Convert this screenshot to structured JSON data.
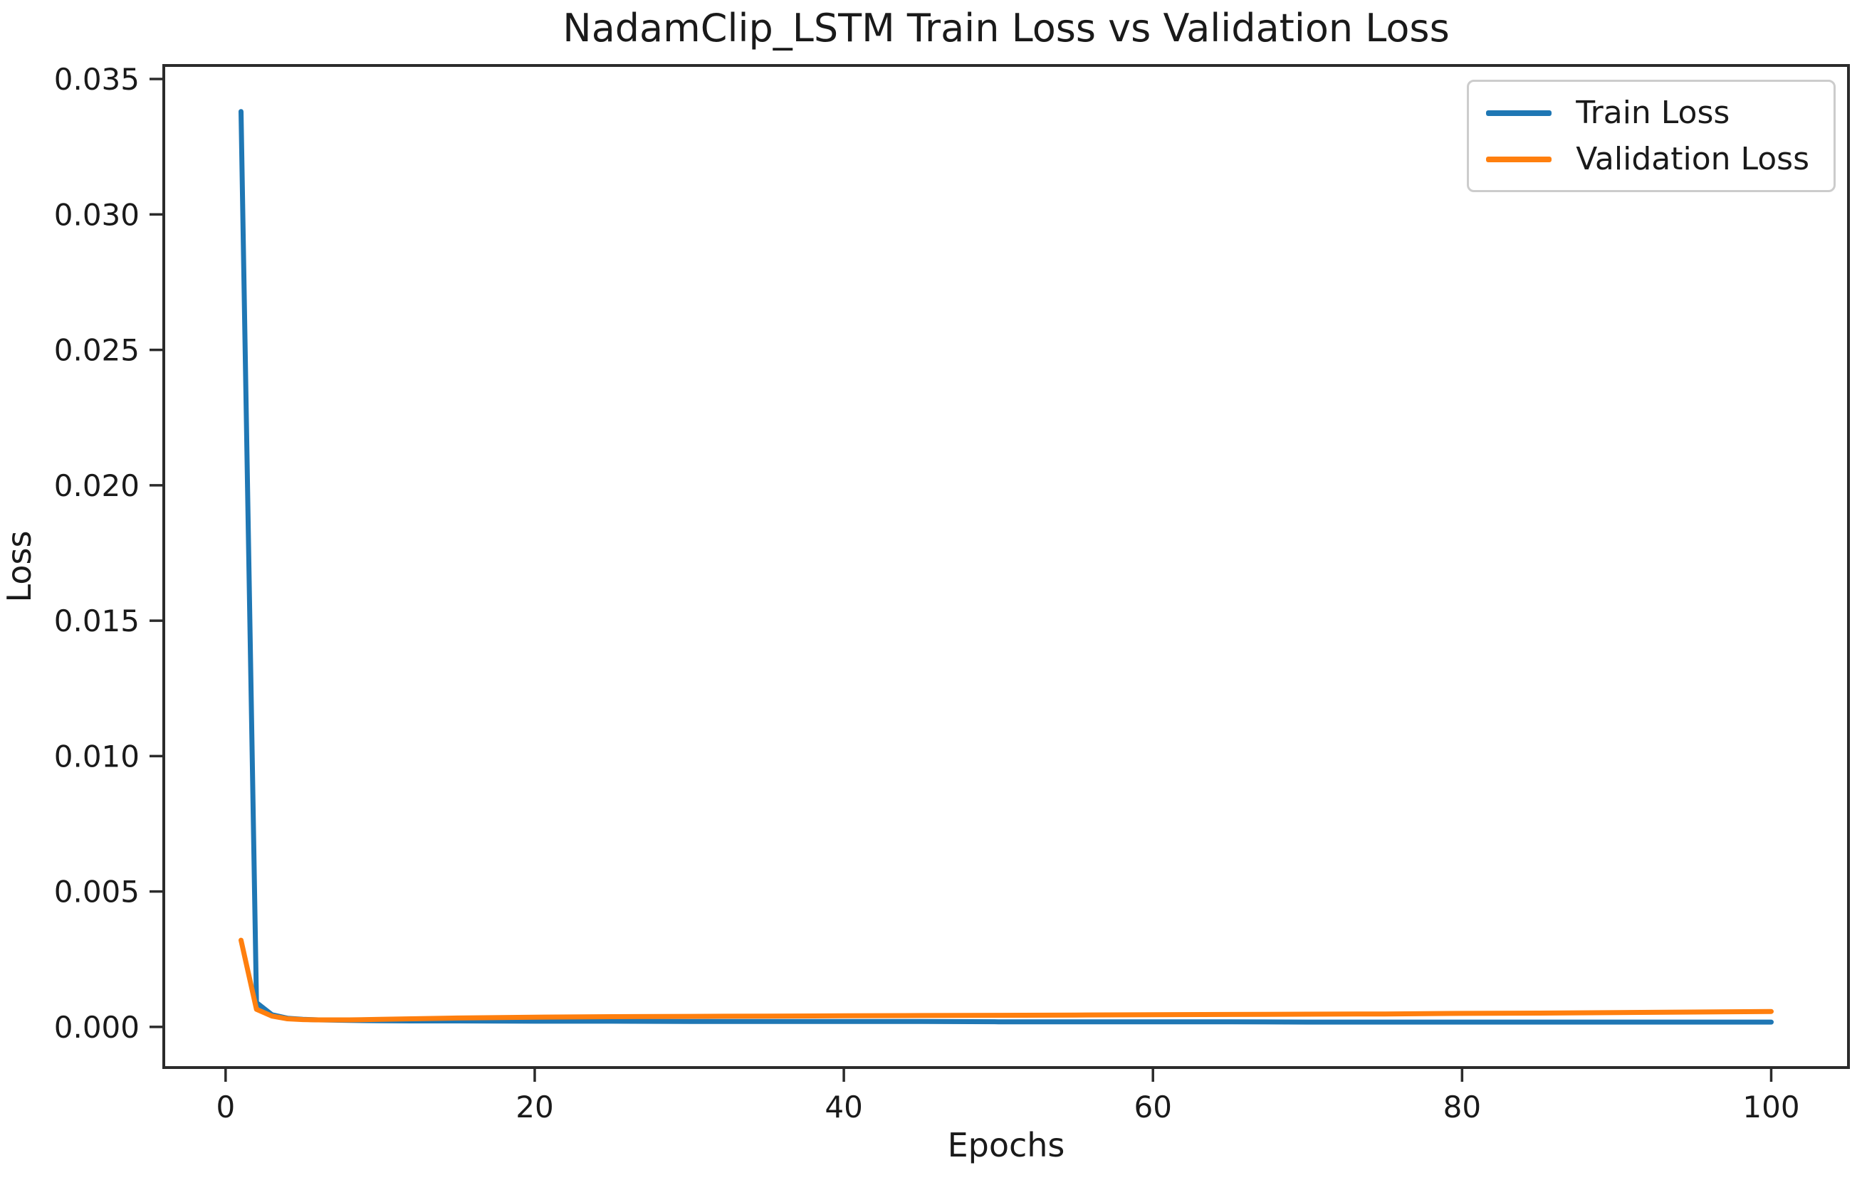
{
  "chart": {
    "title": "NadamClip_LSTM Train Loss vs Validation Loss",
    "xlabel": "Epochs",
    "ylabel": "Loss"
  },
  "legend": {
    "items": [
      {
        "label": "Train Loss",
        "color": "#1f77b4"
      },
      {
        "label": "Validation Loss",
        "color": "#ff7f0e"
      }
    ]
  },
  "chart_data": {
    "type": "line",
    "title": "NadamClip_LSTM Train Loss vs Validation Loss",
    "xlabel": "Epochs",
    "ylabel": "Loss",
    "xlim": [
      -4,
      105
    ],
    "ylim": [
      -0.0015,
      0.0355
    ],
    "xticks": [
      0,
      20,
      40,
      60,
      80,
      100
    ],
    "yticks": [
      0.0,
      0.005,
      0.01,
      0.015,
      0.02,
      0.025,
      0.03,
      0.035
    ],
    "grid": false,
    "legend_position": "upper right",
    "x": [
      1,
      2,
      3,
      4,
      5,
      6,
      8,
      10,
      12,
      15,
      20,
      25,
      30,
      35,
      40,
      45,
      50,
      55,
      60,
      65,
      70,
      75,
      80,
      85,
      90,
      95,
      100
    ],
    "series": [
      {
        "name": "Train Loss",
        "color": "#1f77b4",
        "values": [
          0.0338,
          0.0009,
          0.00045,
          0.00032,
          0.00028,
          0.00026,
          0.00024,
          0.00023,
          0.00022,
          0.00022,
          0.00021,
          0.00021,
          0.0002,
          0.0002,
          0.0002,
          0.0002,
          0.00019,
          0.00019,
          0.00019,
          0.00019,
          0.00018,
          0.00018,
          0.00018,
          0.00018,
          0.00018,
          0.00018,
          0.00018
        ]
      },
      {
        "name": "Validation Loss",
        "color": "#ff7f0e",
        "values": [
          0.0032,
          0.00065,
          0.0004,
          0.0003,
          0.00027,
          0.00026,
          0.00026,
          0.00028,
          0.0003,
          0.00033,
          0.00036,
          0.00038,
          0.00039,
          0.0004,
          0.00041,
          0.00042,
          0.00043,
          0.00044,
          0.00045,
          0.00046,
          0.00047,
          0.00048,
          0.0005,
          0.00051,
          0.00053,
          0.00055,
          0.00057
        ]
      }
    ]
  },
  "style": {
    "axis_color": "#2b2b2b",
    "text_color": "#1a1a1a",
    "legend_border": "#cccccc",
    "background": "#ffffff",
    "tick_label_format_y": "3dp"
  }
}
